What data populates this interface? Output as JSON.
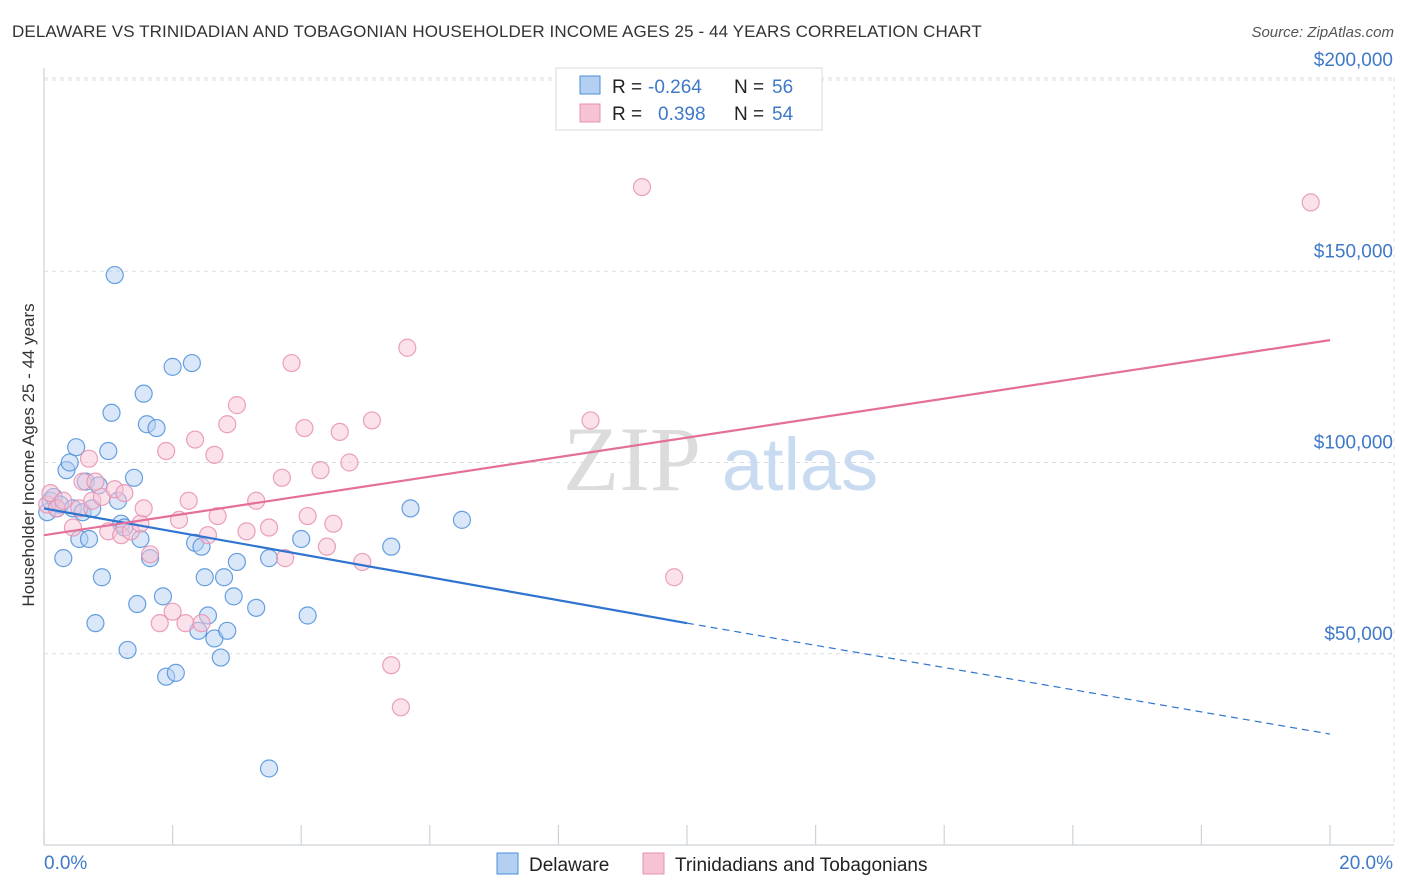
{
  "title": "DELAWARE VS TRINIDADIAN AND TOBAGONIAN HOUSEHOLDER INCOME AGES 25 - 44 YEARS CORRELATION CHART",
  "source": "Source: ZipAtlas.com",
  "watermark": {
    "zip": "ZIP",
    "atlas": "atlas"
  },
  "colors": {
    "blue": "#4d8fdb",
    "blue_fill": "#b3cff2",
    "blue_line": "#2f74cf",
    "pink": "#e891b0",
    "pink_fill": "#f6c3d5",
    "pink_line": "#e46f98",
    "axis_text": "#3f79c8",
    "grid": "#d9dde3"
  },
  "legend": {
    "rows": [
      {
        "r_label": "R =",
        "r_value": "-0.264",
        "n_label": "N =",
        "n_value": "56",
        "color": "blue"
      },
      {
        "r_label": "R =",
        "r_value": "0.398",
        "n_label": "N =",
        "n_value": "54",
        "color": "pink"
      }
    ]
  },
  "bottom_legend": [
    "Delaware",
    "Trinidadians and Tobagonians"
  ],
  "chart_data": {
    "type": "scatter",
    "title": "DELAWARE VS TRINIDADIAN AND TOBAGONIAN HOUSEHOLDER INCOME AGES 25 - 44 YEARS CORRELATION CHART",
    "xlabel": "",
    "ylabel": "Householder Income Ages 25 - 44 years",
    "xlim": [
      0,
      20
    ],
    "ylim": [
      0,
      205000
    ],
    "x_tick_labels": [
      "0.0%",
      "20.0%"
    ],
    "y_ticks": [
      50000,
      100000,
      150000,
      200000
    ],
    "y_tick_labels": [
      "$50,000",
      "$100,000",
      "$150,000",
      "$200,000"
    ],
    "grid": true,
    "legend_position": "top-center",
    "series": [
      {
        "name": "Delaware",
        "color": "blue",
        "points": [
          [
            0.05,
            87000
          ],
          [
            0.1,
            90000
          ],
          [
            0.15,
            91000
          ],
          [
            0.2,
            88000
          ],
          [
            0.25,
            89000
          ],
          [
            0.3,
            75000
          ],
          [
            0.35,
            98000
          ],
          [
            0.4,
            100000
          ],
          [
            0.45,
            88000
          ],
          [
            0.5,
            104000
          ],
          [
            0.55,
            80000
          ],
          [
            0.6,
            87000
          ],
          [
            0.65,
            95000
          ],
          [
            0.7,
            80000
          ],
          [
            0.75,
            88000
          ],
          [
            0.8,
            58000
          ],
          [
            0.85,
            94000
          ],
          [
            0.9,
            70000
          ],
          [
            1.0,
            103000
          ],
          [
            1.05,
            113000
          ],
          [
            1.15,
            90000
          ],
          [
            1.2,
            84000
          ],
          [
            1.25,
            83000
          ],
          [
            1.3,
            51000
          ],
          [
            1.1,
            149000
          ],
          [
            1.45,
            63000
          ],
          [
            1.5,
            80000
          ],
          [
            1.55,
            118000
          ],
          [
            1.6,
            110000
          ],
          [
            1.65,
            75000
          ],
          [
            1.75,
            109000
          ],
          [
            1.85,
            65000
          ],
          [
            1.9,
            44000
          ],
          [
            2.0,
            125000
          ],
          [
            2.05,
            45000
          ],
          [
            2.3,
            126000
          ],
          [
            2.35,
            79000
          ],
          [
            2.4,
            56000
          ],
          [
            2.45,
            78000
          ],
          [
            2.5,
            70000
          ],
          [
            2.55,
            60000
          ],
          [
            2.65,
            54000
          ],
          [
            2.75,
            49000
          ],
          [
            2.8,
            70000
          ],
          [
            2.85,
            56000
          ],
          [
            2.95,
            65000
          ],
          [
            3.0,
            74000
          ],
          [
            3.3,
            62000
          ],
          [
            3.5,
            20000
          ],
          [
            3.5,
            75000
          ],
          [
            4.0,
            80000
          ],
          [
            4.1,
            60000
          ],
          [
            5.4,
            78000
          ],
          [
            5.7,
            88000
          ],
          [
            6.5,
            85000
          ],
          [
            1.4,
            96000
          ]
        ],
        "trend": {
          "x": [
            0,
            10
          ],
          "y": [
            88000,
            58000
          ]
        },
        "trend_extension": {
          "x": [
            10,
            20
          ],
          "y": [
            58000,
            29000
          ]
        }
      },
      {
        "name": "Trinidadians and Tobagonians",
        "color": "pink",
        "points": [
          [
            0.05,
            89000
          ],
          [
            0.1,
            92000
          ],
          [
            0.2,
            88000
          ],
          [
            0.3,
            90000
          ],
          [
            0.45,
            83000
          ],
          [
            0.55,
            88000
          ],
          [
            0.6,
            95000
          ],
          [
            0.7,
            101000
          ],
          [
            0.75,
            90000
          ],
          [
            0.8,
            95000
          ],
          [
            0.9,
            91000
          ],
          [
            1.0,
            82000
          ],
          [
            1.1,
            93000
          ],
          [
            1.2,
            81000
          ],
          [
            1.25,
            92000
          ],
          [
            1.35,
            82000
          ],
          [
            1.5,
            84000
          ],
          [
            1.55,
            88000
          ],
          [
            1.65,
            76000
          ],
          [
            1.8,
            58000
          ],
          [
            1.9,
            103000
          ],
          [
            2.0,
            61000
          ],
          [
            2.1,
            85000
          ],
          [
            2.2,
            58000
          ],
          [
            2.25,
            90000
          ],
          [
            2.35,
            106000
          ],
          [
            2.45,
            58000
          ],
          [
            2.55,
            81000
          ],
          [
            2.65,
            102000
          ],
          [
            2.7,
            86000
          ],
          [
            2.85,
            110000
          ],
          [
            3.0,
            115000
          ],
          [
            3.15,
            82000
          ],
          [
            3.3,
            90000
          ],
          [
            3.5,
            83000
          ],
          [
            3.7,
            96000
          ],
          [
            3.75,
            75000
          ],
          [
            3.85,
            126000
          ],
          [
            4.05,
            109000
          ],
          [
            4.1,
            86000
          ],
          [
            4.3,
            98000
          ],
          [
            4.4,
            78000
          ],
          [
            4.5,
            84000
          ],
          [
            4.6,
            108000
          ],
          [
            4.75,
            100000
          ],
          [
            4.95,
            74000
          ],
          [
            5.1,
            111000
          ],
          [
            5.4,
            47000
          ],
          [
            5.55,
            36000
          ],
          [
            5.65,
            130000
          ],
          [
            8.5,
            111000
          ],
          [
            9.3,
            172000
          ],
          [
            9.8,
            70000
          ],
          [
            19.7,
            168000
          ]
        ],
        "trend": {
          "x": [
            0,
            20
          ],
          "y": [
            81000,
            132000
          ]
        }
      }
    ]
  }
}
